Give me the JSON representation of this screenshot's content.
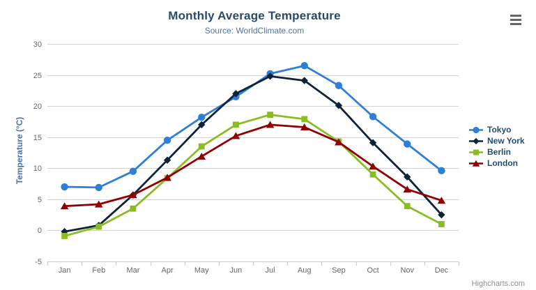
{
  "chart": {
    "title": "Monthly Average Temperature",
    "subtitle": "Source: WorldClimate.com",
    "credit": "Highcharts.com"
  },
  "chart_data": {
    "type": "line",
    "title": "Monthly Average Temperature",
    "subtitle": "Source: WorldClimate.com",
    "xlabel": "",
    "ylabel": "Temperature (°C)",
    "categories": [
      "Jan",
      "Feb",
      "Mar",
      "Apr",
      "May",
      "Jun",
      "Jul",
      "Aug",
      "Sep",
      "Oct",
      "Nov",
      "Dec"
    ],
    "ylim": [
      -5,
      30
    ],
    "ytick_step": 5,
    "grid": true,
    "legend_position": "right-middle",
    "series": [
      {
        "name": "Tokyo",
        "color": "#2f7ed8",
        "marker": "circle",
        "values": [
          7.0,
          6.9,
          9.5,
          14.5,
          18.2,
          21.5,
          25.2,
          26.5,
          23.3,
          18.3,
          13.9,
          9.6
        ]
      },
      {
        "name": "New York",
        "color": "#0d233a",
        "marker": "diamond",
        "values": [
          -0.2,
          0.8,
          5.7,
          11.3,
          17.0,
          22.0,
          24.8,
          24.1,
          20.1,
          14.1,
          8.6,
          2.5
        ]
      },
      {
        "name": "Berlin",
        "color": "#8bbc21",
        "marker": "square",
        "values": [
          -0.9,
          0.6,
          3.5,
          8.4,
          13.5,
          17.0,
          18.6,
          17.9,
          14.3,
          9.0,
          3.9,
          1.0
        ]
      },
      {
        "name": "London",
        "color": "#910000",
        "marker": "triangle",
        "values": [
          3.9,
          4.2,
          5.7,
          8.5,
          11.9,
          15.2,
          17.0,
          16.6,
          14.2,
          10.3,
          6.6,
          4.8
        ]
      }
    ]
  },
  "colors": {
    "grid": "#d2d2d2",
    "axis_line": "#c0d0e0",
    "tick_label": "#666666",
    "title": "#274b6d",
    "subtitle": "#4d759e",
    "axis_title": "#4572a7",
    "legend_text": "#274b6d",
    "credit": "#909090",
    "menu_icon": "#666666"
  }
}
